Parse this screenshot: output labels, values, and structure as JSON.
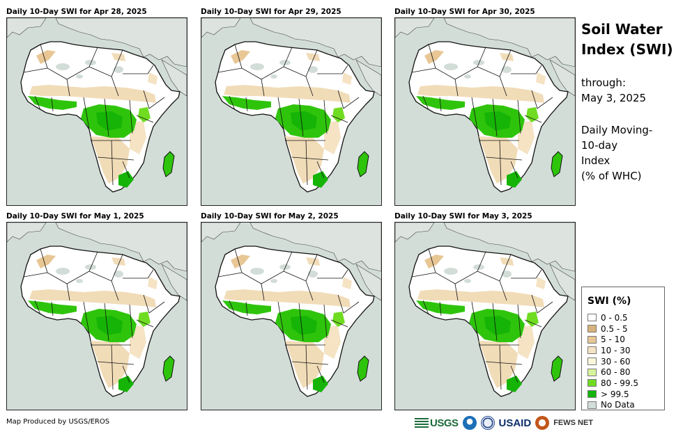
{
  "panels": [
    {
      "title": "Daily 10-Day SWI for Apr 28, 2025"
    },
    {
      "title": "Daily 10-Day SWI for Apr 29, 2025"
    },
    {
      "title": "Daily 10-Day SWI for Apr 30, 2025"
    },
    {
      "title": "Daily 10-Day SWI for May 1, 2025"
    },
    {
      "title": "Daily 10-Day SWI for May 2, 2025"
    },
    {
      "title": "Daily 10-Day SWI for May 3, 2025"
    }
  ],
  "side": {
    "title_line1": "Soil Water",
    "title_line2": "Index (SWI)",
    "through_label": "through:",
    "through_date": "May 3, 2025",
    "desc_line1": "Daily Moving-",
    "desc_line2": "10-day",
    "desc_line3": "Index",
    "desc_line4": "(% of WHC)"
  },
  "legend": {
    "title": "SWI (%)",
    "items": [
      {
        "label": "0 - 0.5",
        "color": "#ffffff"
      },
      {
        "label": "0.5 - 5",
        "color": "#d6b37c"
      },
      {
        "label": "5 - 10",
        "color": "#e8c795"
      },
      {
        "label": "10 - 30",
        "color": "#f5e3c4"
      },
      {
        "label": "30 - 60",
        "color": "#fbf7dc"
      },
      {
        "label": "60 - 80",
        "color": "#d8f59b"
      },
      {
        "label": "80 - 99.5",
        "color": "#6fdc22"
      },
      {
        "label": "> 99.5",
        "color": "#15b406"
      },
      {
        "label": "No Data",
        "color": "#d3ddd8"
      }
    ]
  },
  "credit": "Map Produced by USGS/EROS",
  "logos": {
    "usgs": "USGS",
    "usaid": "USAID",
    "fews": "FEWS NET"
  },
  "colors": {
    "sea": "#d3ddd8",
    "land": "#ffffff",
    "dry": "#f1dcb8",
    "green": "#2fc40c",
    "bright_green": "#15b406",
    "border": "#111111"
  }
}
